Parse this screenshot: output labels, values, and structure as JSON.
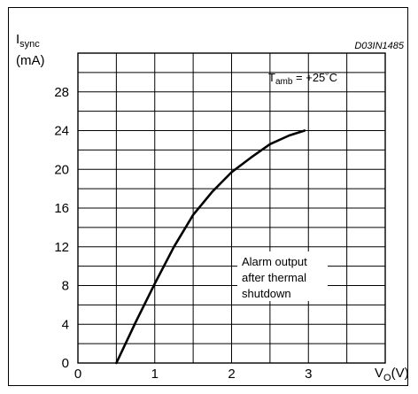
{
  "chart_data": {
    "type": "line",
    "code": "D03IN1485",
    "y_label": {
      "main": "I",
      "sub": "sync",
      "unit": "(mA)"
    },
    "x_label": {
      "main": "V",
      "sub": "O",
      "unit": "(V)"
    },
    "condition": {
      "main": "T",
      "sub": "amb",
      "rest": " = +25˚C"
    },
    "annotation": [
      "Alarm output",
      "after thermal",
      "shutdown"
    ],
    "xlim": [
      0,
      4
    ],
    "ylim": [
      0,
      32
    ],
    "x_ticks": [
      "0",
      "1",
      "2",
      "3"
    ],
    "y_ticks": [
      "0",
      "4",
      "8",
      "12",
      "16",
      "20",
      "24",
      "28"
    ],
    "grid": true,
    "series": [
      {
        "x": [
          0.5,
          0.75,
          1.0,
          1.25,
          1.5,
          1.75,
          2.0,
          2.25,
          2.5,
          2.75,
          2.95
        ],
        "values": [
          0,
          4.2,
          8.2,
          12.0,
          15.3,
          17.7,
          19.7,
          21.2,
          22.6,
          23.5,
          24.0
        ]
      }
    ]
  }
}
